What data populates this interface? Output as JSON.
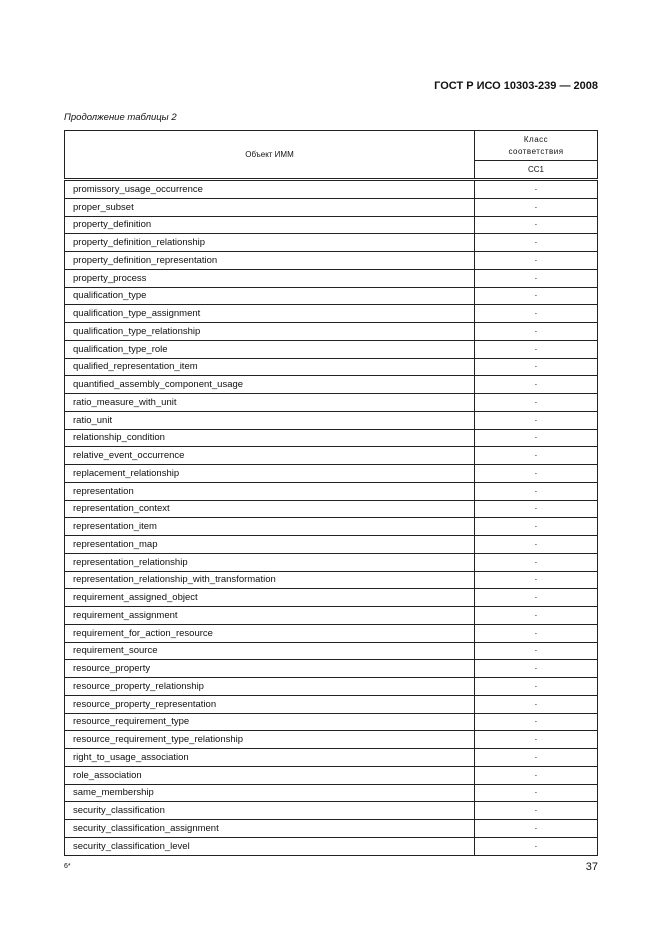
{
  "header": {
    "standard": "ГОСТ Р ИСО 10303-239 — 2008",
    "continuation": "Продолжение таблицы 2"
  },
  "table": {
    "col_object": "Объект ИММ",
    "col_class": "Класс соответствия",
    "col_cc1": "CC1",
    "rows": [
      {
        "name": "promissory_usage_occurrence",
        "cc1": "·"
      },
      {
        "name": "proper_subset",
        "cc1": "·"
      },
      {
        "name": "property_definition",
        "cc1": "·"
      },
      {
        "name": "property_definition_relationship",
        "cc1": "·"
      },
      {
        "name": "property_definition_representation",
        "cc1": "·"
      },
      {
        "name": "property_process",
        "cc1": "·"
      },
      {
        "name": "qualification_type",
        "cc1": "·"
      },
      {
        "name": "qualification_type_assignment",
        "cc1": "·"
      },
      {
        "name": "qualification_type_relationship",
        "cc1": "·"
      },
      {
        "name": "qualification_type_role",
        "cc1": "·"
      },
      {
        "name": "qualified_representation_item",
        "cc1": "·"
      },
      {
        "name": "quantified_assembly_component_usage",
        "cc1": "·"
      },
      {
        "name": "ratio_measure_with_unit",
        "cc1": "·"
      },
      {
        "name": "ratio_unit",
        "cc1": "·"
      },
      {
        "name": "relationship_condition",
        "cc1": "·"
      },
      {
        "name": "relative_event_occurrence",
        "cc1": "·"
      },
      {
        "name": "replacement_relationship",
        "cc1": "·"
      },
      {
        "name": "representation",
        "cc1": "·"
      },
      {
        "name": "representation_context",
        "cc1": "·"
      },
      {
        "name": "representation_item",
        "cc1": "·"
      },
      {
        "name": "representation_map",
        "cc1": "·"
      },
      {
        "name": "representation_relationship",
        "cc1": "·"
      },
      {
        "name": "representation_relationship_with_transformation",
        "cc1": "·"
      },
      {
        "name": "requirement_assigned_object",
        "cc1": "·"
      },
      {
        "name": "requirement_assignment",
        "cc1": "·"
      },
      {
        "name": "requirement_for_action_resource",
        "cc1": "·"
      },
      {
        "name": "requirement_source",
        "cc1": "·"
      },
      {
        "name": "resource_property",
        "cc1": "·"
      },
      {
        "name": "resource_property_relationship",
        "cc1": "·"
      },
      {
        "name": "resource_property_representation",
        "cc1": "·"
      },
      {
        "name": "resource_requirement_type",
        "cc1": "·"
      },
      {
        "name": "resource_requirement_type_relationship",
        "cc1": "·"
      },
      {
        "name": "right_to_usage_association",
        "cc1": "·"
      },
      {
        "name": "role_association",
        "cc1": "·"
      },
      {
        "name": "same_membership",
        "cc1": "·"
      },
      {
        "name": "security_classification",
        "cc1": "·"
      },
      {
        "name": "security_classification_assignment",
        "cc1": "·"
      },
      {
        "name": "security_classification_level",
        "cc1": "·"
      }
    ]
  },
  "footer": {
    "sheet_mark": "6*",
    "page_number": "37"
  }
}
